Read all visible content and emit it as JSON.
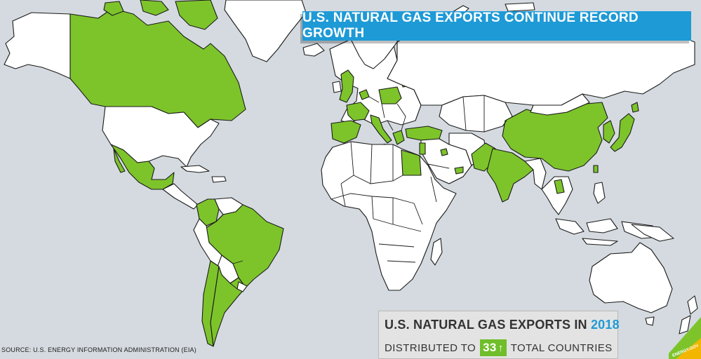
{
  "banner": {
    "title": "U.S. NATURAL GAS EXPORTS CONTINUE RECORD GROWTH"
  },
  "panel": {
    "title": "U.S. NATURAL GAS EXPORTS IN",
    "year": "2018",
    "distributed_prefix": "DISTRIBUTED TO",
    "country_count": "33",
    "count_indicator": "up-arrow",
    "distributed_suffix": "TOTAL COUNTRIES"
  },
  "source": "SOURCE: U.S. ENERGY INFORMATION ADMINISTRATION (EIA)",
  "logo": {
    "text": "ENERGY.GOV"
  },
  "colors": {
    "ocean": "#d4dadf",
    "export_destination": "#7dc42b",
    "other_country": "#ffffff",
    "banner": "#1e9ad6",
    "badge": "#6fbe2a"
  },
  "legend_meaning": {
    "highlighted": "U.S. natural gas export destination"
  }
}
